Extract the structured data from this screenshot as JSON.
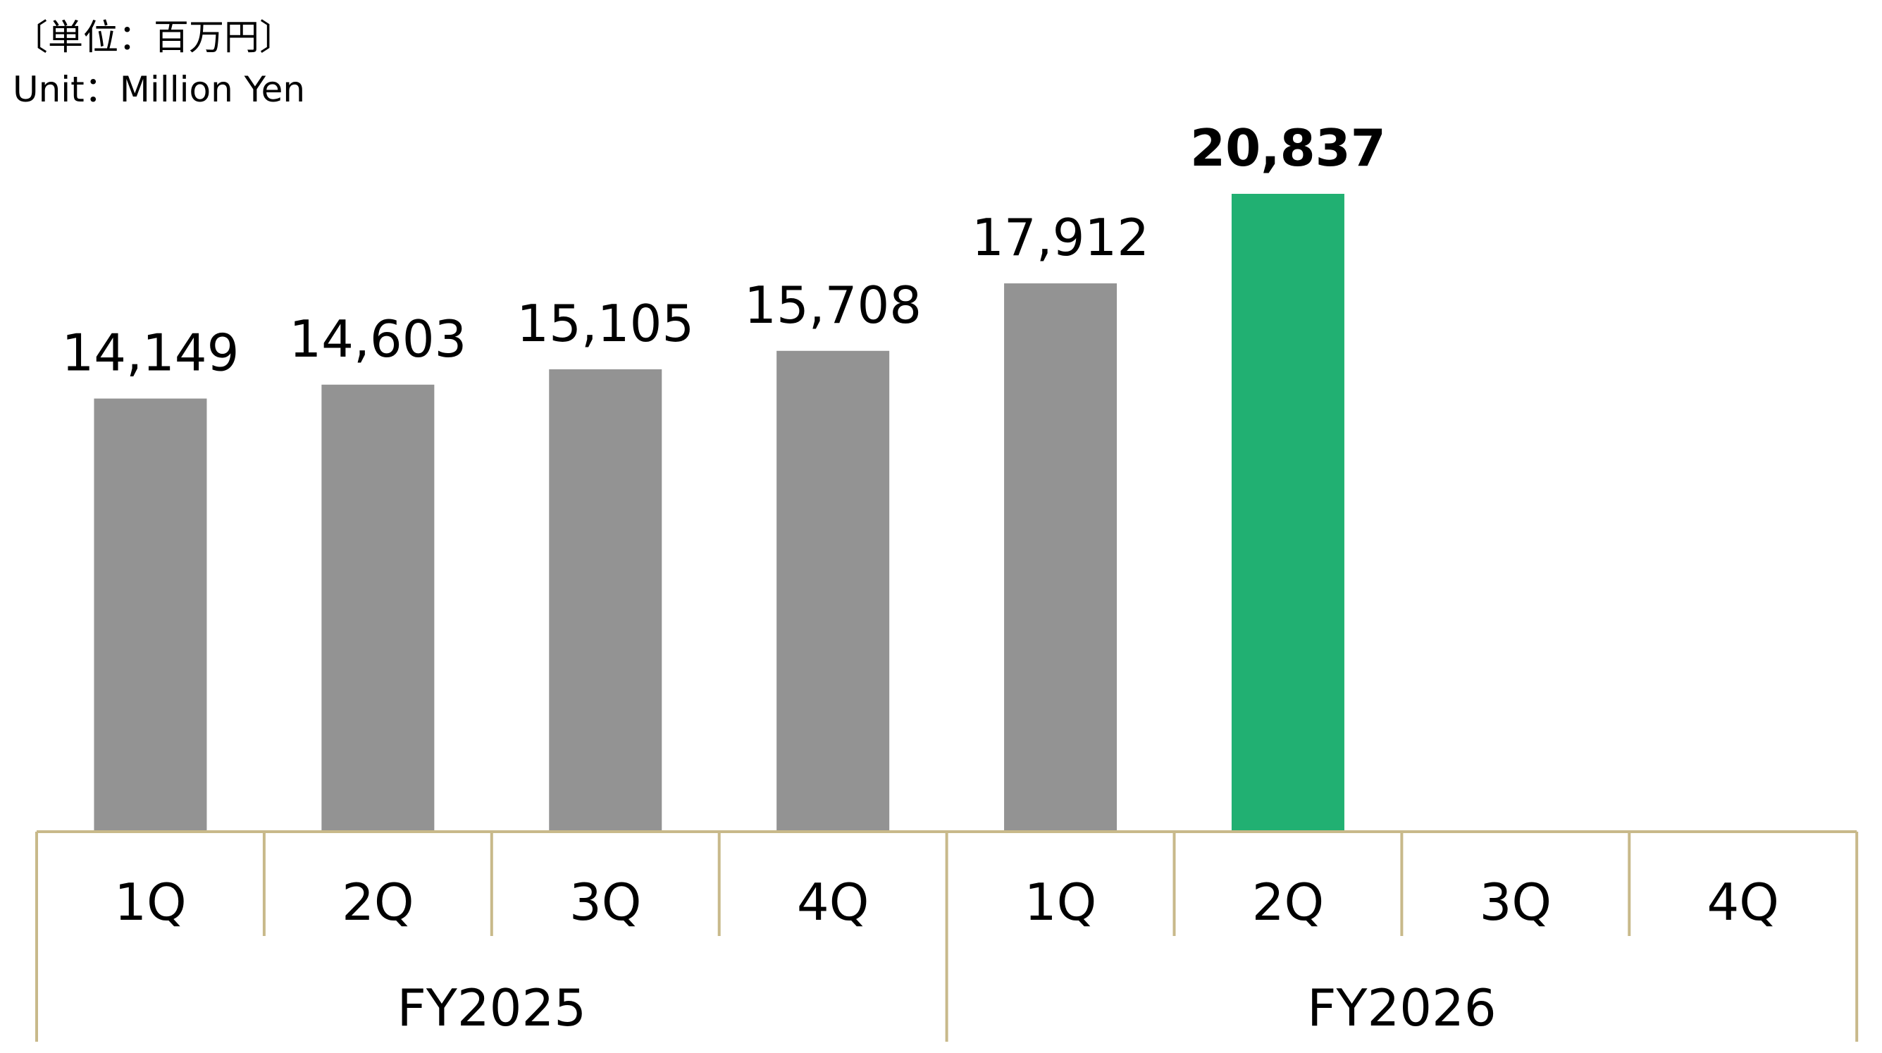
{
  "unit_label_jp": "〔単位：百万円〕",
  "unit_label_en": "Unit：Million Yen",
  "colors": {
    "bar": "#939393",
    "highlight": "#21b072",
    "axis": "#c8b98a"
  },
  "chart_data": {
    "type": "bar",
    "categories": [
      "1Q",
      "2Q",
      "3Q",
      "4Q",
      "1Q",
      "2Q",
      "3Q",
      "4Q"
    ],
    "groups": [
      {
        "label": "FY2025",
        "categories": [
          "1Q",
          "2Q",
          "3Q",
          "4Q"
        ]
      },
      {
        "label": "FY2026",
        "categories": [
          "1Q",
          "2Q",
          "3Q",
          "4Q"
        ]
      }
    ],
    "values": [
      14149,
      14603,
      15105,
      15708,
      17912,
      20837,
      null,
      null
    ],
    "value_labels": [
      "14,149",
      "14,603",
      "15,105",
      "15,708",
      "17,912",
      "20,837",
      "",
      ""
    ],
    "highlight_index": 5,
    "grid": false,
    "legend": "none"
  }
}
